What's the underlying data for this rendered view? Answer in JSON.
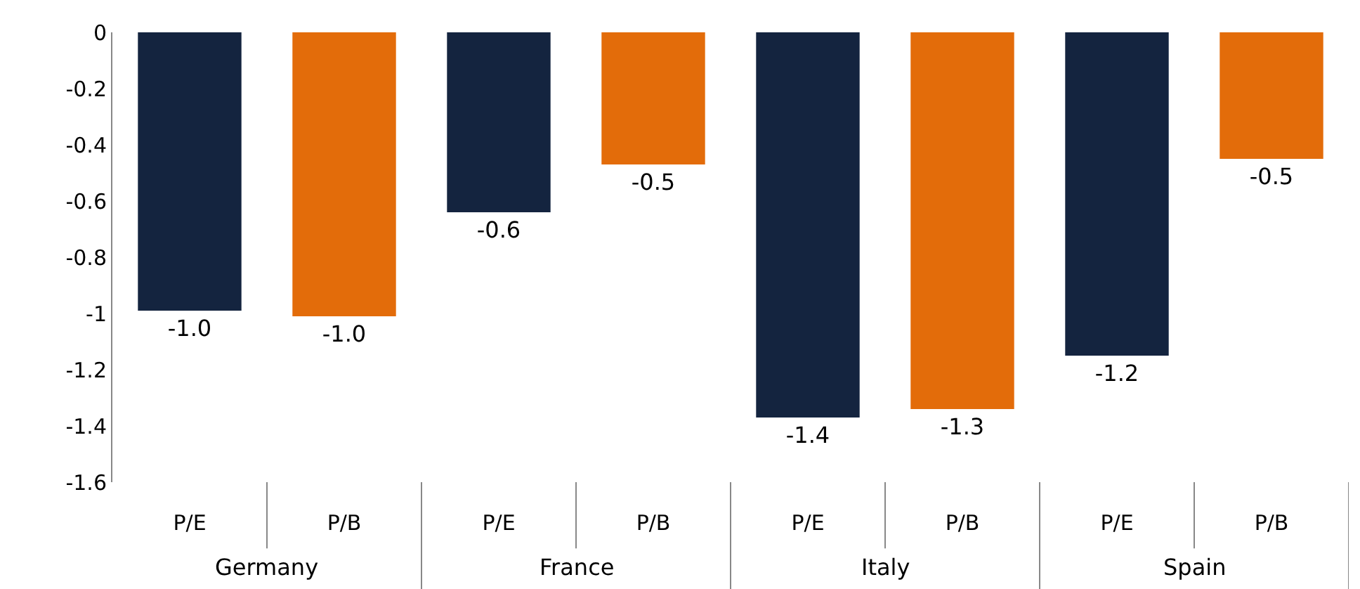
{
  "chart_data": {
    "type": "bar",
    "categories": [
      "P/E",
      "P/B",
      "P/E",
      "P/B",
      "P/E",
      "P/B",
      "P/E",
      "P/B"
    ],
    "values": [
      -0.99,
      -1.01,
      -0.64,
      -0.47,
      -1.37,
      -1.34,
      -1.15,
      -0.45
    ],
    "colors": [
      "#14243f",
      "#e36c0a",
      "#14243f",
      "#e36c0a",
      "#14243f",
      "#e36c0a",
      "#14243f",
      "#e36c0a"
    ],
    "value_labels": [
      "-1.0",
      "-1.0",
      "-0.6",
      "-0.5",
      "-1.4",
      "-1.3",
      "-1.2",
      "-0.5"
    ],
    "annotations": [
      "Germany",
      "France",
      "Italy",
      "Spain"
    ],
    "ylim": [
      -1.6,
      0
    ],
    "yticks": [
      0,
      -0.2,
      -0.4,
      -0.6,
      -0.8,
      -1,
      -1.2,
      -1.4,
      -1.6
    ],
    "legend": false
  }
}
